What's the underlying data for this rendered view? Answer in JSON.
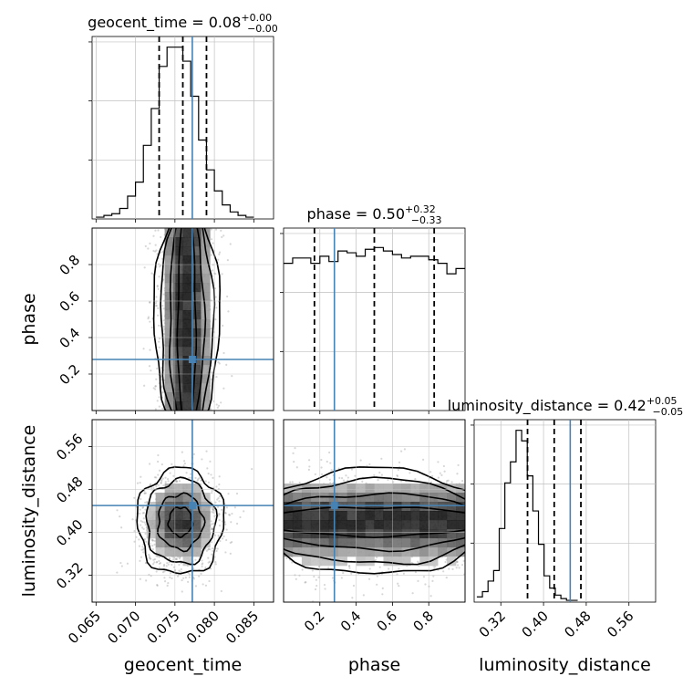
{
  "chart_data": {
    "type": "corner",
    "parameters": [
      "geocent_time",
      "phase",
      "luminosity_distance"
    ],
    "truths": {
      "geocent_time": 0.0772,
      "phase": 0.28,
      "luminosity_distance": 0.45
    },
    "colors": {
      "truth": "#4682b4",
      "hist": "#000000",
      "grid": "#c0c0c0",
      "scatter": "#8c8c8c"
    },
    "grid": true,
    "panels": {
      "geocent_time": {
        "title_main": "geocent_time = 0.08",
        "title_sup": "+0.00",
        "title_sub": "−0.00",
        "xlabel": "geocent_time",
        "xlim": [
          0.0645,
          0.0875
        ],
        "xticks": [
          "0.065",
          "0.070",
          "0.075",
          "0.080",
          "0.085"
        ],
        "xtick_values": [
          0.065,
          0.07,
          0.075,
          0.08,
          0.085
        ],
        "quantiles": [
          0.073,
          0.076,
          0.079
        ],
        "hist_edges_start": 0.065,
        "hist_bin_width": 0.001,
        "hist_counts": [
          1,
          2,
          3,
          6,
          13,
          21,
          42,
          63,
          87,
          98,
          98,
          90,
          70,
          45,
          28,
          16,
          8,
          4,
          2,
          1
        ],
        "hist_ymax": 100
      },
      "phase": {
        "title_main": "phase = 0.50",
        "title_sup": "+0.32",
        "title_sub": "−0.33",
        "xlabel": "phase",
        "ylabel": "phase",
        "xlim": [
          0.0,
          1.0
        ],
        "xticks": [
          "0.2",
          "0.4",
          "0.6",
          "0.8"
        ],
        "xtick_values": [
          0.2,
          0.4,
          0.6,
          0.8
        ],
        "yticks": [
          "0.2",
          "0.4",
          "0.6",
          "0.8"
        ],
        "ytick_values": [
          0.2,
          0.4,
          0.6,
          0.8
        ],
        "quantiles": [
          0.17,
          0.5,
          0.83
        ],
        "hist_edges_start": 0.0,
        "hist_bin_width": 0.05,
        "hist_counts": [
          84,
          87,
          87,
          84,
          88,
          85,
          91,
          90,
          88,
          92,
          93,
          91,
          89,
          87,
          88,
          88,
          86,
          84,
          78,
          81
        ],
        "hist_ymax": 100
      },
      "luminosity_distance": {
        "title_main": "luminosity_distance = 0.42",
        "title_sup": "+0.05",
        "title_sub": "−0.05",
        "xlabel": "luminosity_distance",
        "ylabel": "luminosity_distance",
        "xlim": [
          0.27,
          0.61
        ],
        "xticks": [
          "0.32",
          "0.40",
          "0.48",
          "0.56"
        ],
        "xtick_values": [
          0.32,
          0.4,
          0.48,
          0.56
        ],
        "yticks": [
          "0.32",
          "0.40",
          "0.48",
          "0.56"
        ],
        "ytick_values": [
          0.32,
          0.4,
          0.48,
          0.56
        ],
        "quantiles": [
          0.37,
          0.42,
          0.47
        ],
        "hist_edges_start": 0.275,
        "hist_bin_width": 0.0105,
        "hist_counts": [
          3,
          6,
          12,
          18,
          42,
          68,
          80,
          98,
          92,
          72,
          52,
          33,
          15,
          8,
          4,
          2,
          1,
          1
        ],
        "hist_ymax": 100
      }
    },
    "joint": {
      "phase_vs_geocent_time": {
        "center_x": 0.0765,
        "center_y": 0.5,
        "sigma_x": 0.0019,
        "sigma_y": 0.29,
        "y_uniform": true
      },
      "ld_vs_geocent_time": {
        "center_x": 0.0757,
        "center_y": 0.42,
        "sigma_x": 0.0025,
        "sigma_y": 0.045
      },
      "ld_vs_phase": {
        "center_x": 0.5,
        "center_y": 0.42,
        "sigma_x": 0.29,
        "sigma_y": 0.045,
        "x_uniform": true
      }
    }
  }
}
